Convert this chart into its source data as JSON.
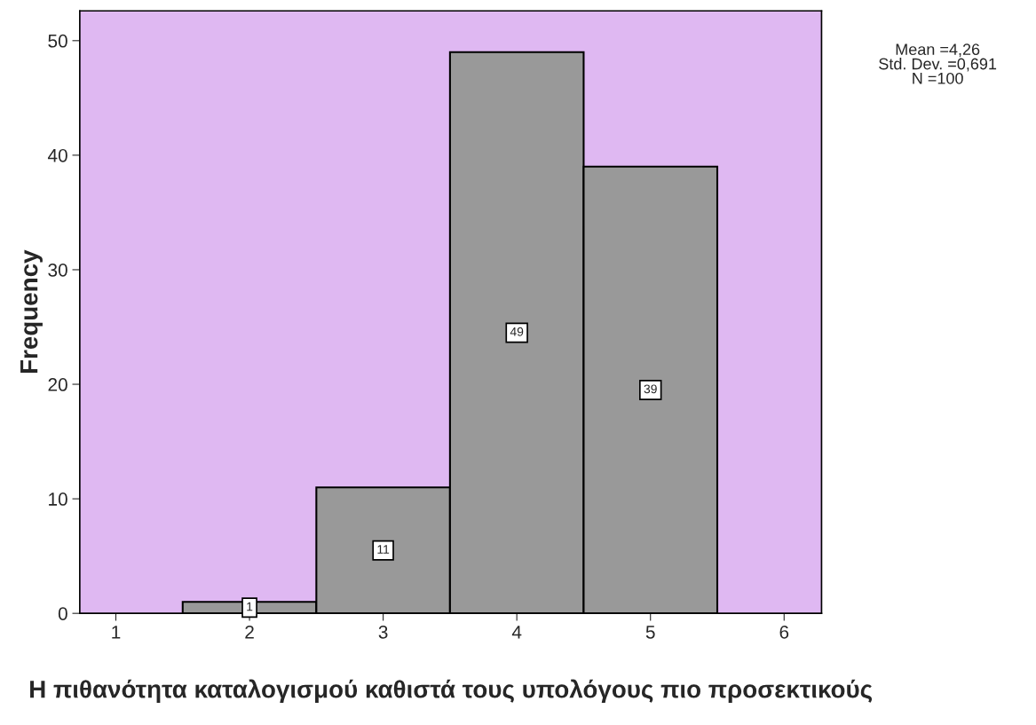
{
  "chart_data": {
    "type": "histogram",
    "xlabel": "Η πιθανότητα καταλογισμού καθιστά τους υπολόγους πιο προσεκτικούς",
    "ylabel": "Frequency",
    "bins": [
      1.5,
      2.5,
      3.5,
      4.5,
      5.5
    ],
    "values": [
      1,
      11,
      49,
      39
    ],
    "color": "#999999",
    "xlim": [
      0.73,
      6.28
    ],
    "xticks": [
      1,
      2,
      3,
      4,
      5,
      6
    ],
    "ylim": [
      0,
      52.6
    ],
    "yticks": [
      0,
      10,
      20,
      30,
      40,
      50
    ],
    "data_labels": true,
    "grid": false,
    "legend": false,
    "annotations": [
      "Mean =4,26",
      "Std. Dev. =0,691",
      "N =100"
    ]
  }
}
